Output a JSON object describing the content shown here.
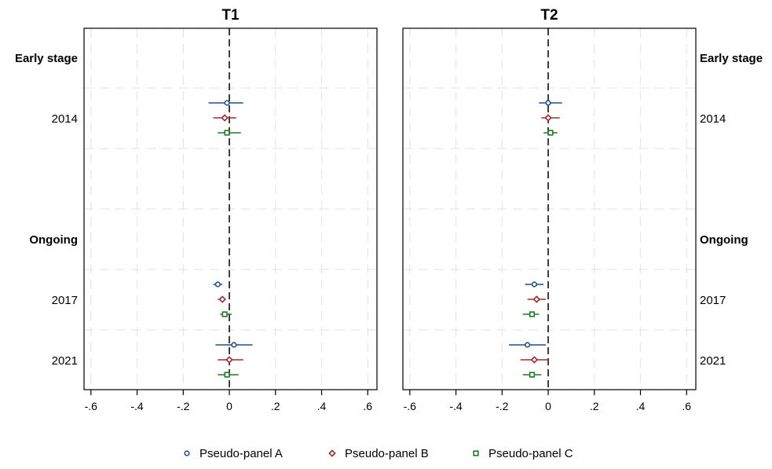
{
  "chart_data": {
    "type": "scatter",
    "x_ticks": [
      -0.6,
      -0.4,
      -0.2,
      0,
      0.2,
      0.4,
      0.6
    ],
    "x_tick_labels": [
      "-.6",
      "-.4",
      "-.2",
      "0",
      ".2",
      ".4",
      ".6"
    ],
    "xlim": [
      -0.63,
      0.64
    ],
    "reference_line_x": 0,
    "grid": true,
    "legend_position": "bottom",
    "rows": [
      {
        "label": "Early stage",
        "kind": "group"
      },
      {
        "label": "2014",
        "kind": "year"
      },
      {
        "label": "Ongoing",
        "kind": "group"
      },
      {
        "label": "2017",
        "kind": "year"
      },
      {
        "label": "2021",
        "kind": "year"
      }
    ],
    "series": [
      {
        "name": "Pseudo-panel A",
        "color": "#1f4e8c",
        "marker": "circle"
      },
      {
        "name": "Pseudo-panel B",
        "color": "#a12a2e",
        "marker": "diamond"
      },
      {
        "name": "Pseudo-panel C",
        "color": "#1e7a1e",
        "marker": "square"
      }
    ],
    "panels": [
      {
        "title": "T1",
        "label_side": "left",
        "estimates": [
          {
            "row": "2014",
            "series": "Pseudo-panel A",
            "value": -0.01,
            "ci": [
              -0.09,
              0.06
            ]
          },
          {
            "row": "2014",
            "series": "Pseudo-panel B",
            "value": -0.02,
            "ci": [
              -0.07,
              0.03
            ]
          },
          {
            "row": "2014",
            "series": "Pseudo-panel C",
            "value": -0.01,
            "ci": [
              -0.05,
              0.05
            ]
          },
          {
            "row": "2017",
            "series": "Pseudo-panel A",
            "value": -0.05,
            "ci": [
              -0.07,
              -0.03
            ]
          },
          {
            "row": "2017",
            "series": "Pseudo-panel B",
            "value": -0.03,
            "ci": [
              -0.05,
              -0.02
            ]
          },
          {
            "row": "2017",
            "series": "Pseudo-panel C",
            "value": -0.02,
            "ci": [
              -0.04,
              0.01
            ]
          },
          {
            "row": "2021",
            "series": "Pseudo-panel A",
            "value": 0.02,
            "ci": [
              -0.06,
              0.1
            ]
          },
          {
            "row": "2021",
            "series": "Pseudo-panel B",
            "value": 0.0,
            "ci": [
              -0.05,
              0.06
            ]
          },
          {
            "row": "2021",
            "series": "Pseudo-panel C",
            "value": -0.01,
            "ci": [
              -0.05,
              0.04
            ]
          }
        ]
      },
      {
        "title": "T2",
        "label_side": "right",
        "estimates": [
          {
            "row": "2014",
            "series": "Pseudo-panel A",
            "value": 0.0,
            "ci": [
              -0.04,
              0.06
            ]
          },
          {
            "row": "2014",
            "series": "Pseudo-panel B",
            "value": 0.0,
            "ci": [
              -0.03,
              0.05
            ]
          },
          {
            "row": "2014",
            "series": "Pseudo-panel C",
            "value": 0.01,
            "ci": [
              -0.02,
              0.04
            ]
          },
          {
            "row": "2017",
            "series": "Pseudo-panel A",
            "value": -0.06,
            "ci": [
              -0.1,
              -0.02
            ]
          },
          {
            "row": "2017",
            "series": "Pseudo-panel B",
            "value": -0.05,
            "ci": [
              -0.09,
              -0.01
            ]
          },
          {
            "row": "2017",
            "series": "Pseudo-panel C",
            "value": -0.07,
            "ci": [
              -0.11,
              -0.04
            ]
          },
          {
            "row": "2021",
            "series": "Pseudo-panel A",
            "value": -0.09,
            "ci": [
              -0.17,
              -0.01
            ]
          },
          {
            "row": "2021",
            "series": "Pseudo-panel B",
            "value": -0.06,
            "ci": [
              -0.12,
              0.0
            ]
          },
          {
            "row": "2021",
            "series": "Pseudo-panel C",
            "value": -0.07,
            "ci": [
              -0.11,
              -0.03
            ]
          }
        ]
      }
    ]
  }
}
